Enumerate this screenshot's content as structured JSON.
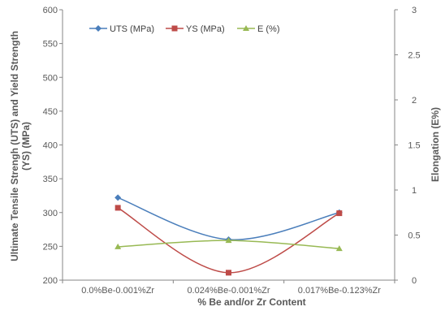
{
  "chart_data": {
    "type": "line",
    "title": "",
    "categories": [
      "0.0%Be-0.001%Zr",
      "0.024%Be-0.001%Zr",
      "0.017%Be-0.123%Zr"
    ],
    "xlabel": "% Be and/or Zr Content",
    "ylabel_lines": [
      "Ultimate Tensile Strengh (UTS) and Yield Strength",
      "(YS) (MPa)"
    ],
    "y2label": "Elongation (E%)",
    "ylim": [
      200,
      600
    ],
    "yticks": [
      "200",
      "250",
      "300",
      "350",
      "400",
      "450",
      "500",
      "550",
      "600"
    ],
    "y2lim": [
      0,
      3
    ],
    "y2ticks": [
      "0",
      "0.5",
      "1",
      "1.5",
      "2",
      "2.5",
      "3"
    ],
    "grid": false,
    "legend_position": "top-left",
    "series": [
      {
        "name": "UTS (MPa)",
        "axis": "left",
        "values": [
          322,
          260,
          300
        ],
        "color": "#4a7ebb",
        "marker": "diamond"
      },
      {
        "name": "YS (MPa)",
        "axis": "left",
        "values": [
          307,
          211,
          299
        ],
        "color": "#be4b48",
        "marker": "square"
      },
      {
        "name": "E (%)",
        "axis": "right",
        "values": [
          0.37,
          0.44,
          0.35
        ],
        "color": "#98b954",
        "marker": "triangle"
      }
    ]
  }
}
